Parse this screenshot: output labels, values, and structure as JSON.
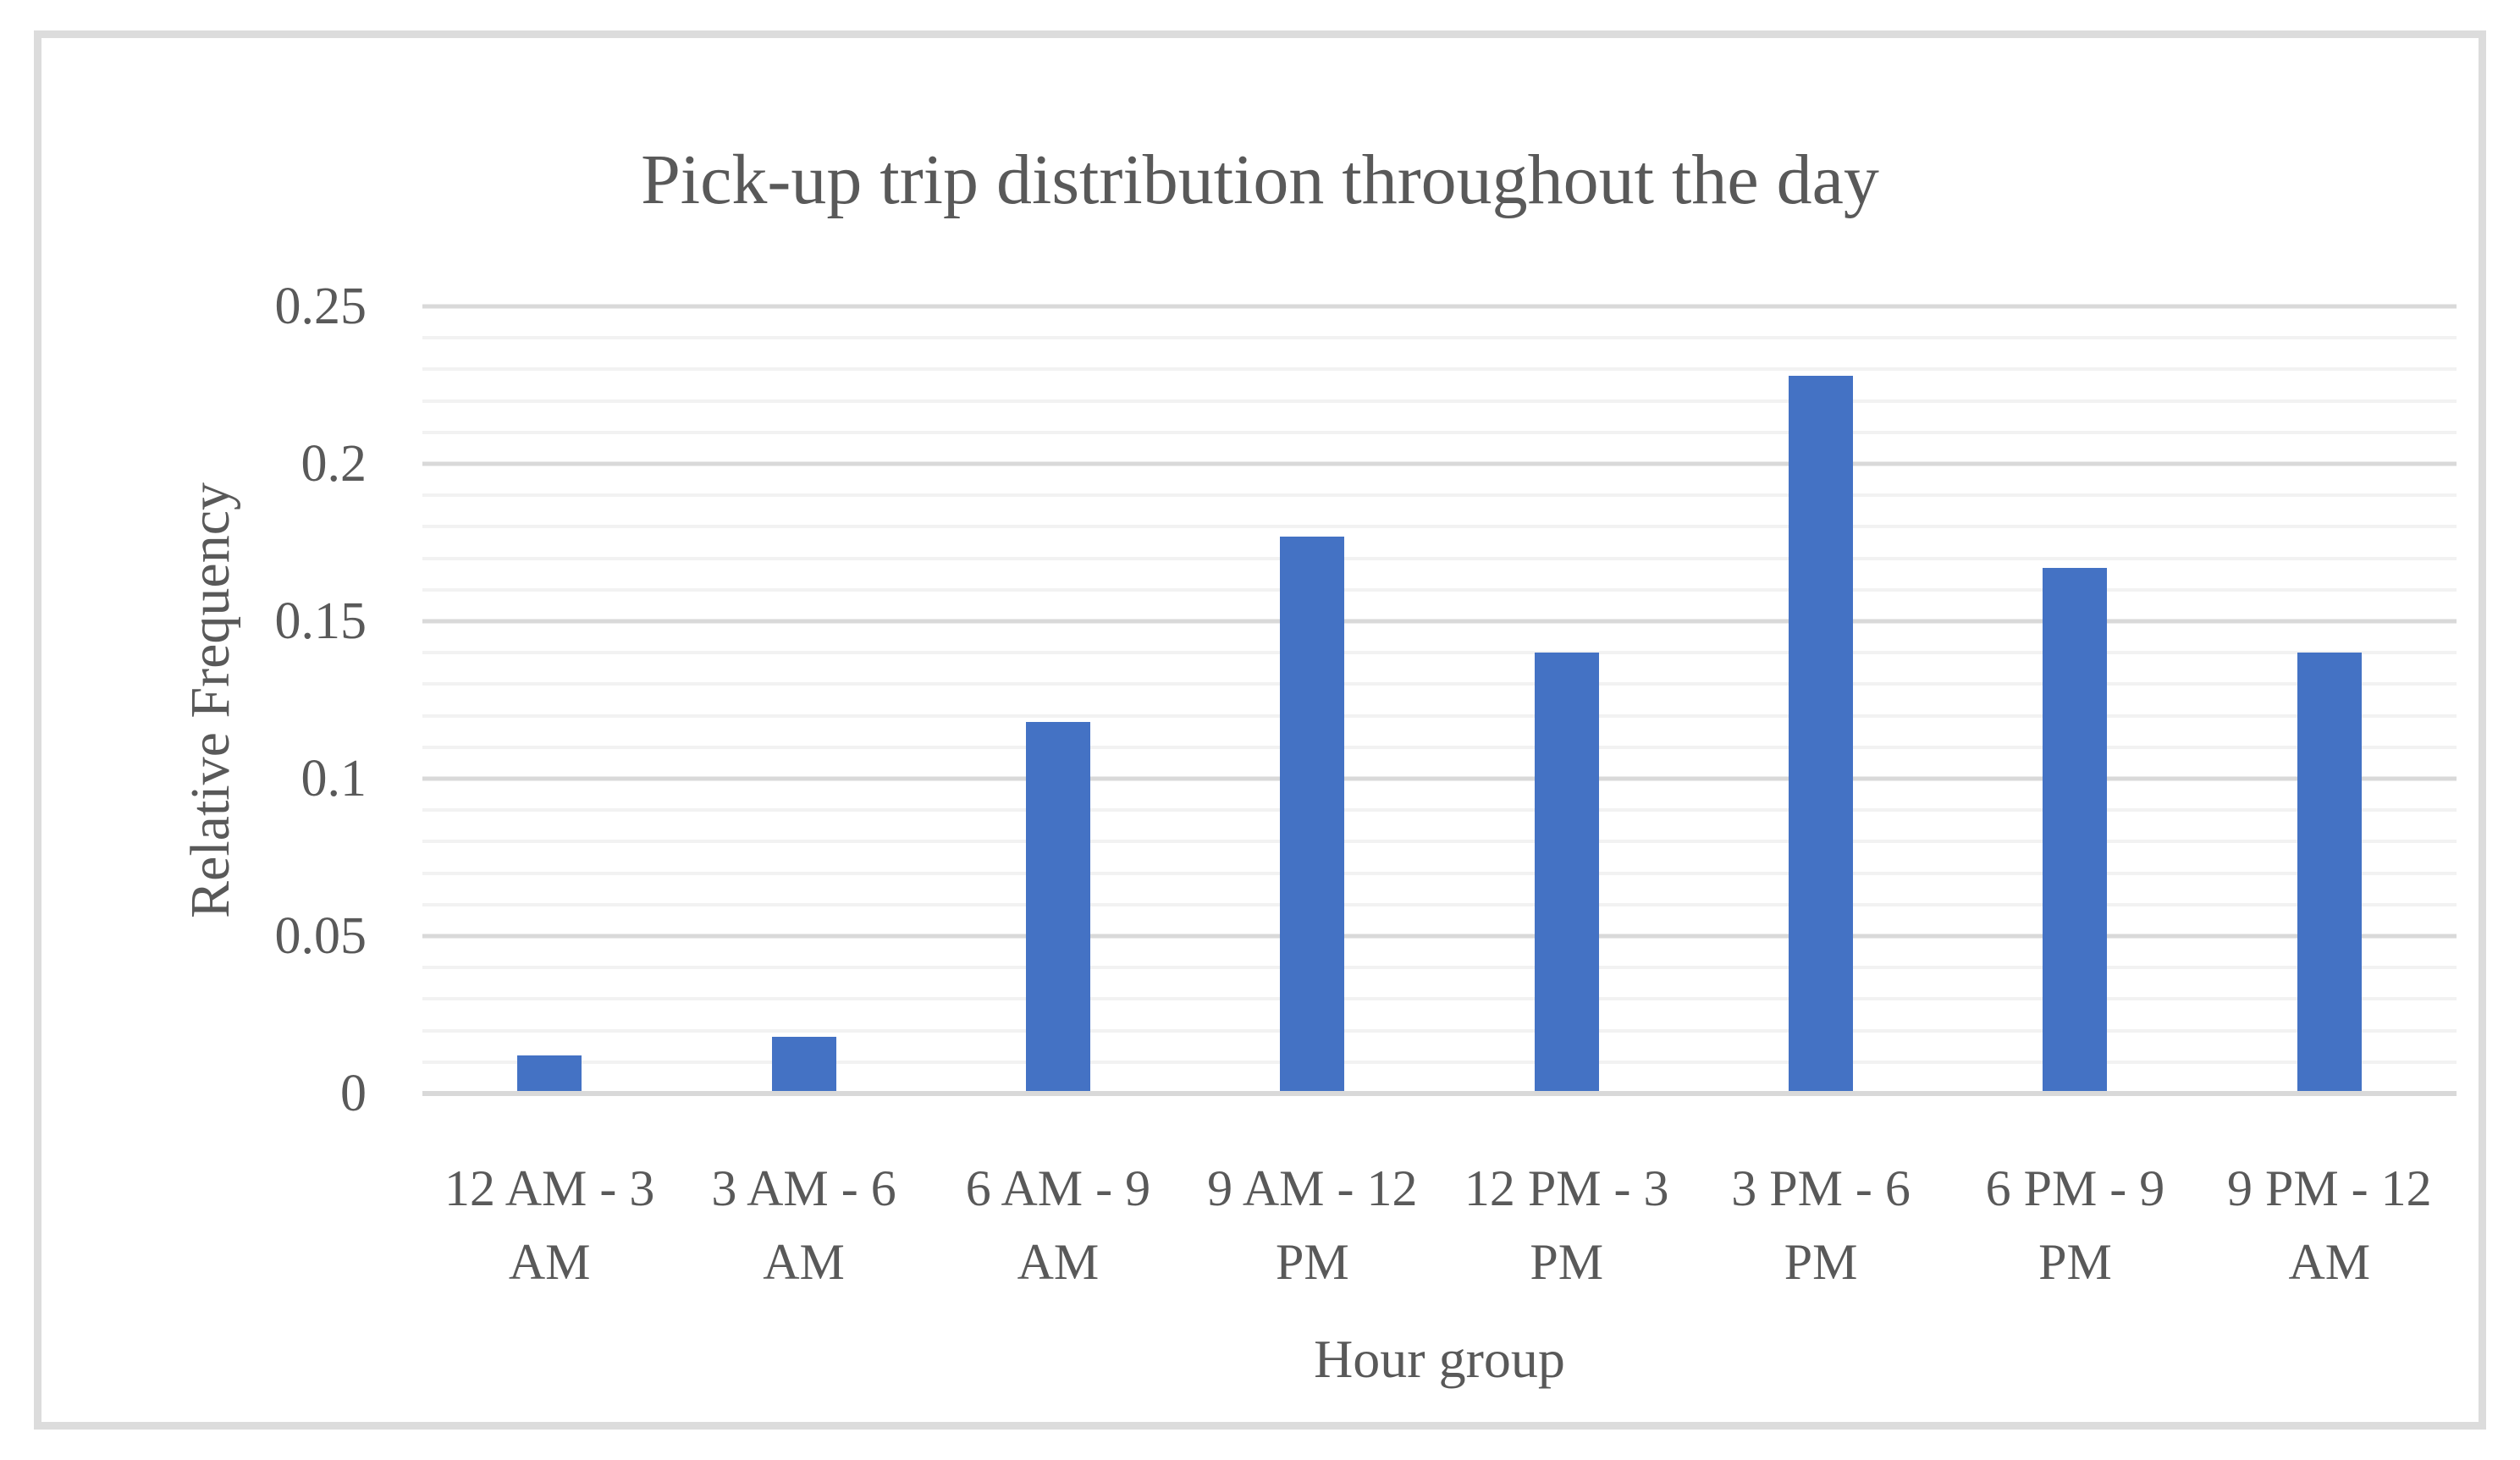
{
  "chart_data": {
    "type": "bar",
    "title": "Pick-up trip distribution throughout the day",
    "xlabel": "Hour group",
    "ylabel": "Relative Frequency",
    "categories": [
      "12 AM - 3 AM",
      "3 AM - 6 AM",
      "6 AM - 9 AM",
      "9 AM - 12 PM",
      "12 PM - 3 PM",
      "3 PM - 6 PM",
      "6 PM - 9 PM",
      "9 PM - 12 AM"
    ],
    "values": [
      0.012,
      0.018,
      0.118,
      0.177,
      0.14,
      0.228,
      0.167,
      0.14
    ],
    "ylim": [
      0,
      0.25
    ],
    "y_major_step": 0.05,
    "y_minor_step": 0.01,
    "y_tick_labels": [
      "0",
      "0.05",
      "0.1",
      "0.15",
      "0.2",
      "0.25"
    ],
    "grid": true,
    "legend": false
  },
  "colors": {
    "bar": "#4472c4",
    "text": "#595959",
    "grid_minor": "#f2f2f2",
    "grid_major": "#d9d9d9",
    "axis_line": "#d9d9d9",
    "frame_border": "#dcdcdc",
    "background": "#ffffff"
  }
}
